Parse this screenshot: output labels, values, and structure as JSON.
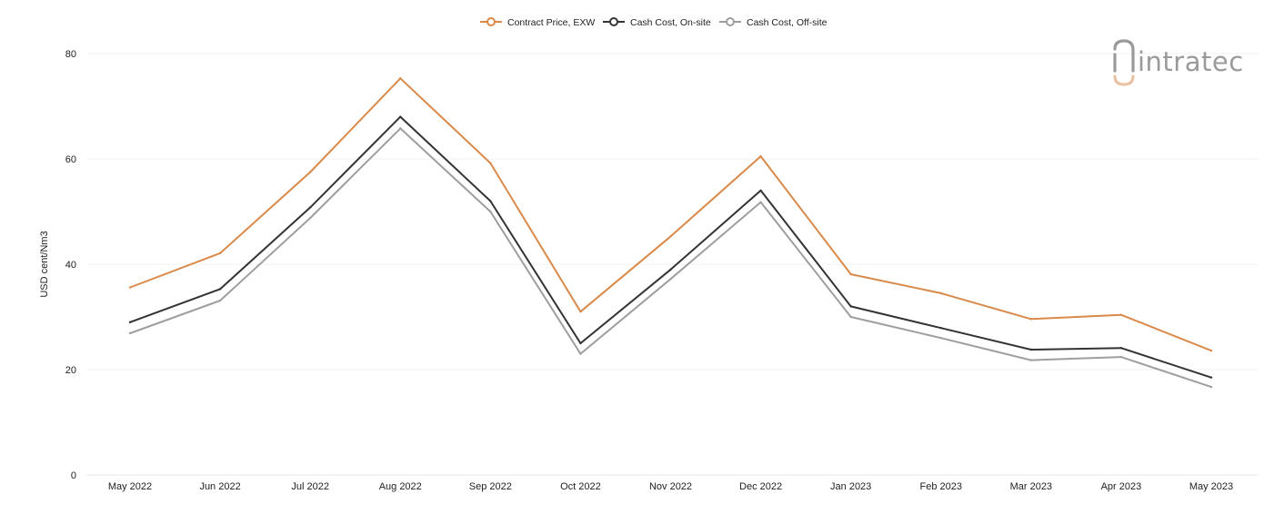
{
  "chart_data": {
    "type": "line",
    "title": "",
    "xlabel": "",
    "ylabel": "USD cent/Nm3",
    "ylim": [
      0,
      80
    ],
    "yticks": [
      0,
      20,
      40,
      60,
      80
    ],
    "grid": true,
    "legend_position": "top-center",
    "categories": [
      "May 2022",
      "Jun 2022",
      "Jul 2022",
      "Aug 2022",
      "Sep 2022",
      "Oct 2022",
      "Nov 2022",
      "Dec 2022",
      "Jan 2023",
      "Feb 2023",
      "Mar 2023",
      "Apr 2023",
      "May 2023"
    ],
    "series": [
      {
        "name": "Contract Price, EXW",
        "color": "#d98a4a",
        "values": [
          35.6,
          42.1,
          57.5,
          75.3,
          59.2,
          31.0,
          45.3,
          60.5,
          38.1,
          34.5,
          29.6,
          30.4,
          23.6
        ]
      },
      {
        "name": "Cash Cost, On-site",
        "color": "#333333",
        "values": [
          29.0,
          35.3,
          50.8,
          68.0,
          52.0,
          25.0,
          39.0,
          54.0,
          32.0,
          27.9,
          23.8,
          24.1,
          18.5
        ]
      },
      {
        "name": "Cash Cost, Off-site",
        "color": "#9e9e9e",
        "values": [
          26.9,
          33.1,
          48.8,
          65.8,
          50.0,
          23.0,
          37.2,
          51.8,
          30.0,
          26.0,
          21.8,
          22.4,
          16.7
        ]
      }
    ]
  },
  "logo": {
    "text": "intratec",
    "color": "#9a9a9a",
    "accent": "#e8c3a3"
  }
}
